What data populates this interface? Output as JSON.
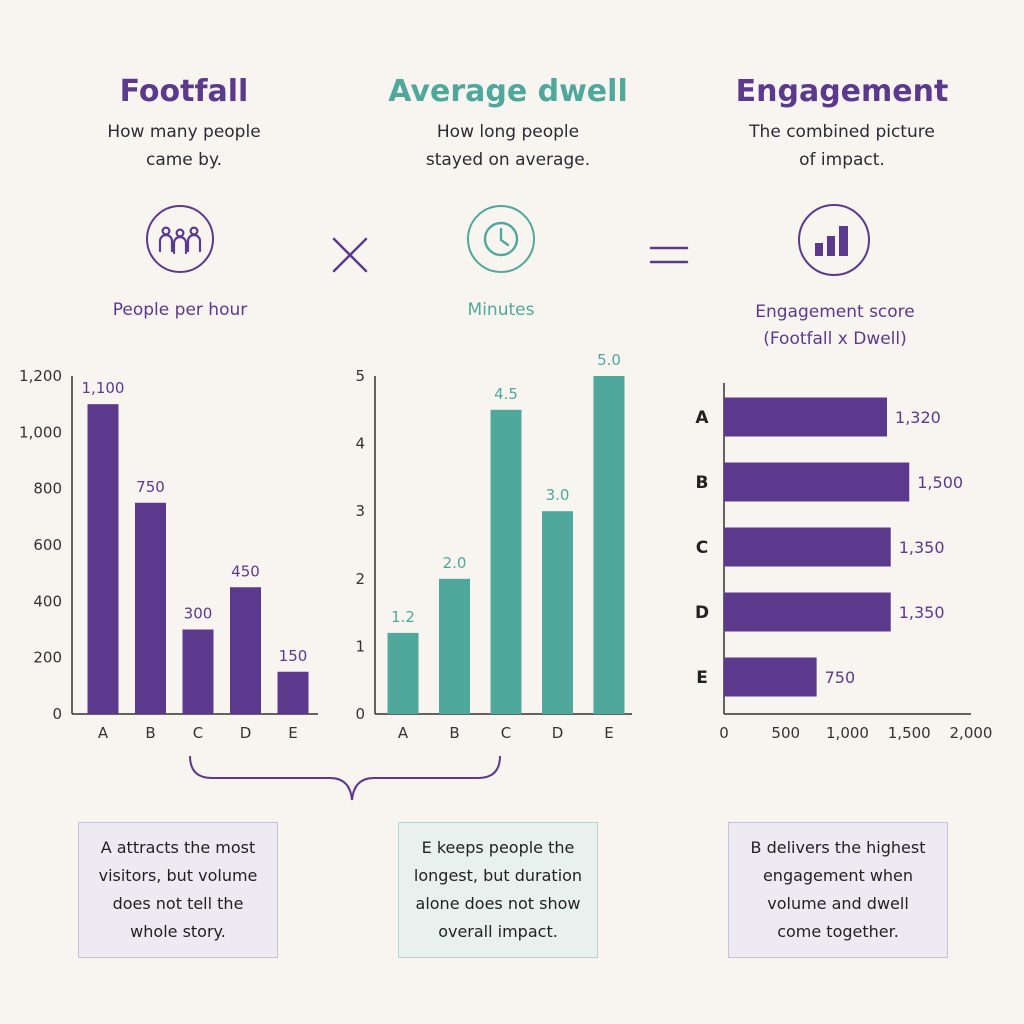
{
  "colors": {
    "purple": "#5b3a8e",
    "teal": "#4fa89b",
    "axis": "#333333"
  },
  "sections": [
    {
      "title": "Footfall",
      "desc": [
        "How many people",
        "came by."
      ],
      "icon": "people-icon",
      "unit": [
        "People per hour"
      ],
      "color": "#5b3a8e"
    },
    {
      "title": "Average dwell",
      "desc": [
        "How long people",
        "stayed on average."
      ],
      "icon": "clock-icon",
      "unit": [
        "Minutes"
      ],
      "color": "#4fa89b"
    },
    {
      "title": "Engagement",
      "desc": [
        "The combined picture",
        "of impact."
      ],
      "icon": "bar-chart-icon",
      "unit": [
        "Engagement score",
        "(Footfall x Dwell)"
      ],
      "color": "#5b3a8e"
    }
  ],
  "operators": {
    "multiply": "multiply-icon",
    "equals": "equals-icon"
  },
  "chart_data": [
    {
      "type": "bar",
      "categories": [
        "A",
        "B",
        "C",
        "D",
        "E"
      ],
      "values": [
        1100,
        750,
        300,
        450,
        150
      ],
      "value_labels": [
        "1,100",
        "750",
        "300",
        "450",
        "150"
      ],
      "ylim": [
        0,
        1200
      ],
      "yticks": [
        0,
        200,
        400,
        600,
        800,
        1000,
        1200
      ],
      "ytick_labels": [
        "0",
        "200",
        "400",
        "600",
        "800",
        "1,000",
        "1,200"
      ],
      "color": "#5b3a8e",
      "grid": false
    },
    {
      "type": "bar",
      "categories": [
        "A",
        "B",
        "C",
        "D",
        "E"
      ],
      "values": [
        1.2,
        2.0,
        4.5,
        3.0,
        5.0
      ],
      "value_labels": [
        "1.2",
        "2.0",
        "4.5",
        "3.0",
        "5.0"
      ],
      "ylim": [
        0,
        5
      ],
      "yticks": [
        0,
        1,
        2,
        3,
        4,
        5
      ],
      "ytick_labels": [
        "0",
        "1",
        "2",
        "3",
        "4",
        "5"
      ],
      "color": "#4fa89b",
      "grid": false
    },
    {
      "type": "bar",
      "orientation": "horizontal",
      "categories": [
        "A",
        "B",
        "C",
        "D",
        "E"
      ],
      "values": [
        1320,
        1500,
        1350,
        1350,
        750
      ],
      "value_labels": [
        "1,320",
        "1,500",
        "1,350",
        "1,350",
        "750"
      ],
      "xlim": [
        0,
        2000
      ],
      "xticks": [
        0,
        500,
        1000,
        1500,
        2000
      ],
      "xtick_labels": [
        "0",
        "500",
        "1,000",
        "1,500",
        "2,000"
      ],
      "color": "#5b3a8e",
      "grid": false
    }
  ],
  "notes": [
    {
      "lines": [
        "A attracts the most",
        "visitors, but volume",
        "does not tell the",
        "whole story."
      ]
    },
    {
      "lines": [
        "E keeps people the",
        "longest, but duration",
        "alone does not show",
        "overall impact."
      ]
    },
    {
      "lines": [
        "B delivers the highest",
        "engagement when",
        "volume and dwell",
        "come together."
      ]
    }
  ]
}
